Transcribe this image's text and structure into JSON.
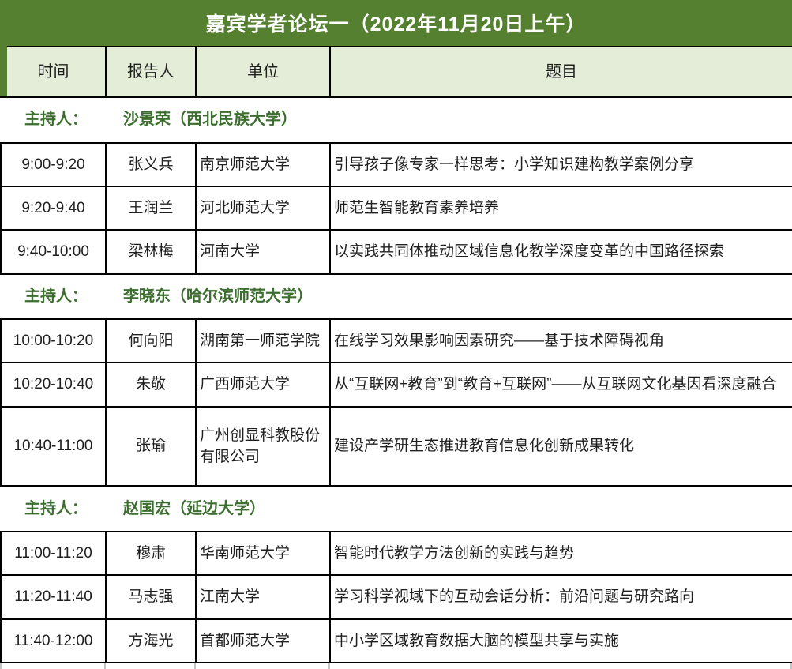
{
  "title_bar": {
    "title": "嘉宾学者论坛一（2022年11月20日上午）"
  },
  "table": {
    "columns": [
      "时间",
      "报告人",
      "单位",
      "题目"
    ],
    "sections": [
      {
        "host_label": "主持人：",
        "host_name": "沙景荣（西北民族大学）",
        "rows": [
          {
            "time": "9:00-9:20",
            "speaker": "张义兵",
            "org": "南京师范大学",
            "topic": "引导孩子像专家一样思考：小学知识建构教学案例分享"
          },
          {
            "time": "9:20-9:40",
            "speaker": "王润兰",
            "org": "河北师范大学",
            "topic": "师范生智能教育素养培养"
          },
          {
            "time": "9:40-10:00",
            "speaker": "梁林梅",
            "org": "河南大学",
            "topic": "以实践共同体推动区域信息化教学深度变革的中国路径探索"
          }
        ]
      },
      {
        "host_label": "主持人：",
        "host_name": "李晓东（哈尔滨师范大学）",
        "rows": [
          {
            "time": "10:00-10:20",
            "speaker": "何向阳",
            "org": "湖南第一师范学院",
            "topic": "在线学习效果影响因素研究——基于技术障碍视角"
          },
          {
            "time": "10:20-10:40",
            "speaker": "朱敬",
            "org": "广西师范大学",
            "topic": "从“互联网+教育”到“教育+互联网”——从互联网文化基因看深度融合"
          },
          {
            "time": "10:40-11:00",
            "speaker": "张瑜",
            "org": "广州创显科教股份有限公司",
            "topic": "建设产学研生态推进教育信息化创新成果转化"
          }
        ]
      },
      {
        "host_label": "主持人：",
        "host_name": "赵国宏（延边大学）",
        "rows": [
          {
            "time": "11:00-11:20",
            "speaker": "穆肃",
            "org": "华南师范大学",
            "topic": "智能时代教学方法创新的实践与趋势"
          },
          {
            "time": "11:20-11:40",
            "speaker": "马志强",
            "org": "江南大学",
            "topic": "学习科学视域下的互动会话分析：前沿问题与研究路向"
          },
          {
            "time": "11:40-12:00",
            "speaker": "方海光",
            "org": "首都师范大学",
            "topic": "中小学区域教育数据大脑的模型共享与实施"
          }
        ]
      }
    ]
  },
  "colors": {
    "title_bar_bg": "#558030",
    "title_text": "#ffffff",
    "header_bg": "#e3edd7",
    "header_accent": "#558030",
    "host_text": "#3c6e2f",
    "body_text": "#1f1f1f",
    "border": "#000000"
  }
}
